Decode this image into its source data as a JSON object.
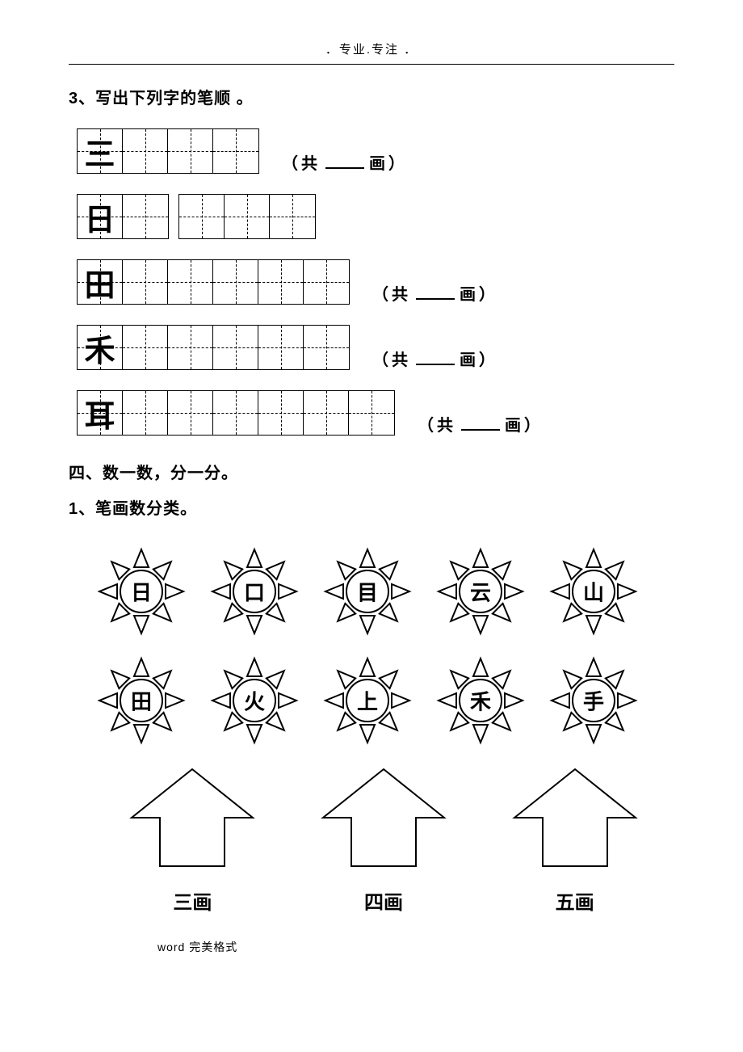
{
  "header": {
    "top_text": "．专业.专注 ．"
  },
  "q3": {
    "title": "3、写出下列字的笔顺 。",
    "rows": [
      {
        "char": "三",
        "cells": 4,
        "extra_strip_cells": 0,
        "show_count": true
      },
      {
        "char": "日",
        "cells": 2,
        "extra_strip_cells": 3,
        "show_count": false
      },
      {
        "char": "田",
        "cells": 6,
        "extra_strip_cells": 0,
        "show_count": true
      },
      {
        "char": "禾",
        "cells": 6,
        "extra_strip_cells": 0,
        "show_count": true
      },
      {
        "char": "耳",
        "cells": 7,
        "extra_strip_cells": 0,
        "show_count": true
      }
    ],
    "count_prefix": "（共",
    "count_suffix": "画）"
  },
  "section4": {
    "heading": "四、数一数，分一分。",
    "sub": "1、笔画数分类。",
    "suns_row1": [
      "日",
      "口",
      "目",
      "云",
      "山"
    ],
    "suns_row2": [
      "田",
      "火",
      "上",
      "禾",
      "手"
    ],
    "arrows": [
      "三画",
      "四画",
      "五画"
    ]
  },
  "footer": {
    "left": "word 完美格式"
  },
  "style": {
    "stroke_color": "#000000",
    "stroke_width": 2
  }
}
